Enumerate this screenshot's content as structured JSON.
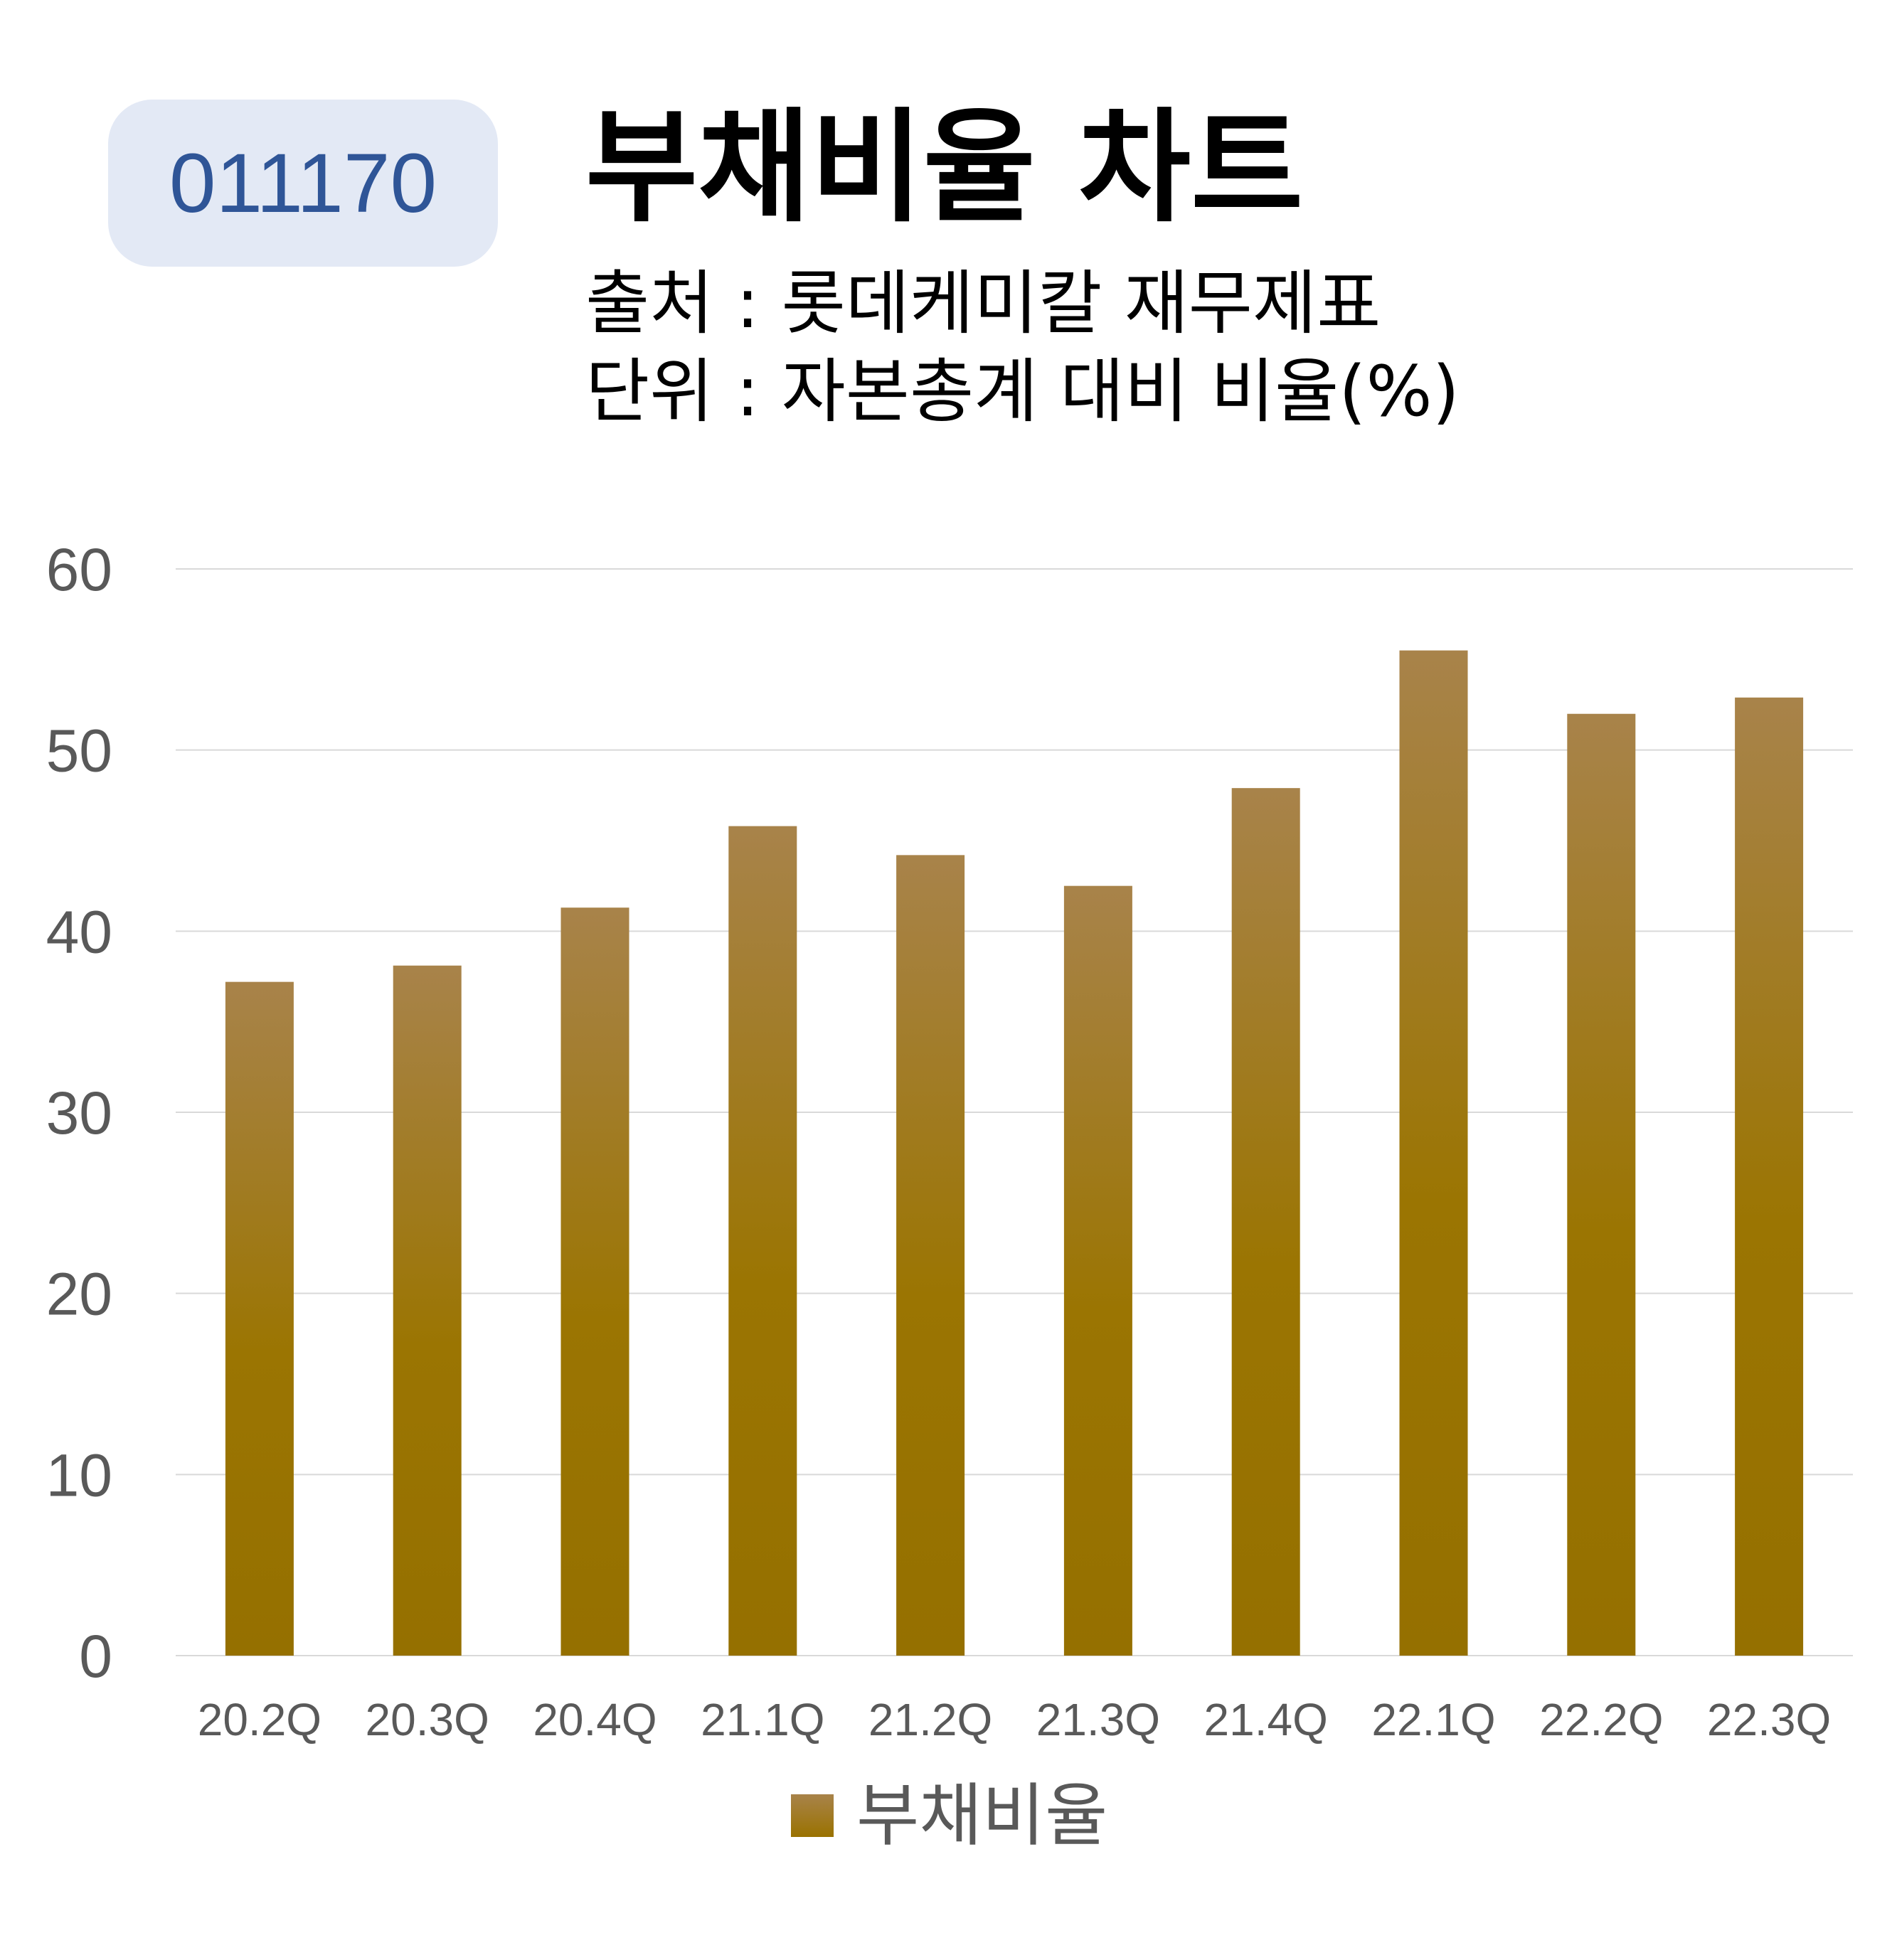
{
  "header": {
    "code": "011170",
    "title": "부채비율 차트",
    "source": "출처 : 롯데케미칼 재무제표",
    "unit": "단위 : 자본총계 대비 비율(%)"
  },
  "colors": {
    "bar_top": "#a8834a",
    "bar_bottom": "#957000",
    "grid": "#d9d9d9",
    "badge_bg": "#e3e9f5",
    "badge_text": "#2f5597",
    "tick_text": "#595959"
  },
  "chart_data": {
    "type": "bar",
    "categories": [
      "20.2Q",
      "20.3Q",
      "20.4Q",
      "21.1Q",
      "21.2Q",
      "21.3Q",
      "21.4Q",
      "22.1Q",
      "22.2Q",
      "22.3Q"
    ],
    "series": [
      {
        "name": "부채비율",
        "values": [
          37.2,
          38.1,
          41.3,
          45.8,
          44.2,
          42.5,
          47.9,
          55.5,
          52.0,
          52.9
        ]
      }
    ],
    "ylim": [
      0,
      60
    ],
    "yticks": [
      0,
      10,
      20,
      30,
      40,
      50,
      60
    ],
    "grid": true,
    "legend_position": "bottom"
  }
}
